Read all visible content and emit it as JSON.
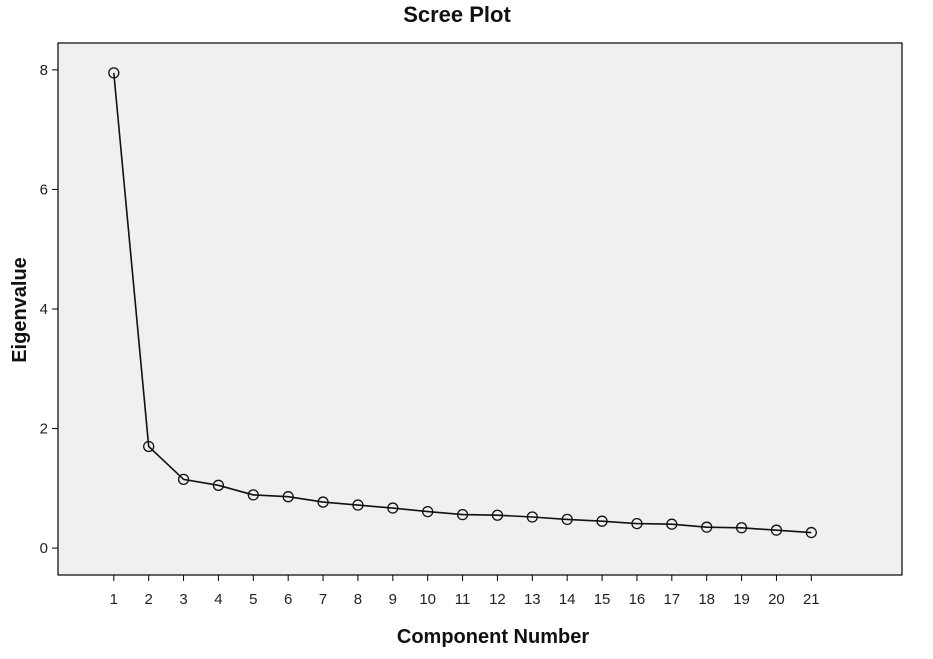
{
  "chart_data": {
    "type": "line",
    "title": "Scree Plot",
    "xlabel": "Component Number",
    "ylabel": "Eigenvalue",
    "x": [
      1,
      2,
      3,
      4,
      5,
      6,
      7,
      8,
      9,
      10,
      11,
      12,
      13,
      14,
      15,
      16,
      17,
      18,
      19,
      20,
      21
    ],
    "values": [
      7.95,
      1.7,
      1.15,
      1.05,
      0.89,
      0.86,
      0.77,
      0.72,
      0.67,
      0.61,
      0.56,
      0.55,
      0.52,
      0.48,
      0.45,
      0.41,
      0.4,
      0.35,
      0.34,
      0.3,
      0.26
    ],
    "xticks": [
      "1",
      "2",
      "3",
      "4",
      "5",
      "6",
      "7",
      "8",
      "9",
      "10",
      "11",
      "12",
      "13",
      "14",
      "15",
      "16",
      "17",
      "18",
      "19",
      "20",
      "21"
    ],
    "yticks": [
      "0",
      "2",
      "4",
      "6",
      "8"
    ],
    "ytick_values": [
      0,
      2,
      4,
      6,
      8
    ],
    "xlim": [
      -0.6,
      23.6
    ],
    "ylim": [
      -0.45,
      8.45
    ],
    "grid": false,
    "marker": "open-circle",
    "colors": {
      "plot_background": "#f0f0f0",
      "line": "#111111",
      "axis": "#000000"
    }
  }
}
